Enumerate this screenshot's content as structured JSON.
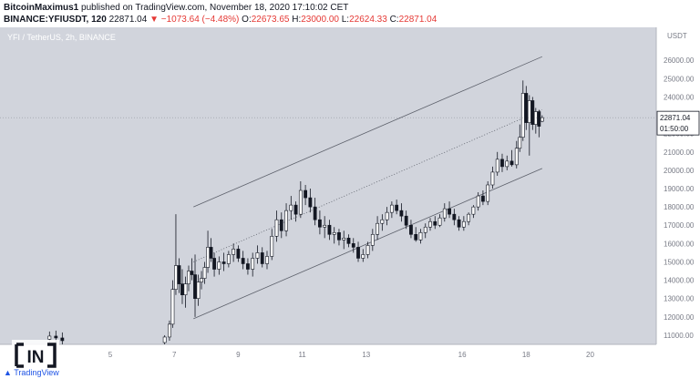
{
  "header": {
    "line1_author": "BitcoinMaximus1",
    "line1_rest": " published on TradingView.com, November 18, 2020 17:10:02 CET",
    "line2_symbol": "BINANCE:YFIUSDT, 120",
    "line2_price": "22871.04",
    "line2_change": "▼ −1073.64 (−4.48%)",
    "line2_o_label": "O:",
    "line2_o": "22673.65",
    "line2_h_label": "H:",
    "line2_h": "23000.00",
    "line2_l_label": "L:",
    "line2_l": "22624.33",
    "line2_c_label": "C:",
    "line2_c": "22871.04"
  },
  "chart_title": "YFI / TetherUS, 2h, BINANCE",
  "currency": "USDT",
  "last_price_label": "22871.04",
  "countdown_label": "01:50:00",
  "branding": {
    "logo_text": "IN",
    "tv_text": "TradingView"
  },
  "colors": {
    "background": "#d1d4dc",
    "candle_up": "#ffffff",
    "candle_down": "#131722",
    "wick": "#131722",
    "channel": "#363a45",
    "price_tag": "#131722",
    "change": "#e53935"
  },
  "chart_data": {
    "type": "candlestick",
    "title": "YFI / TetherUS, 2h, BINANCE",
    "ylabel": "USDT",
    "ylim": [
      10500,
      27800
    ],
    "x_ticks": [
      "5",
      "7",
      "9",
      "11",
      "13",
      "16",
      "18",
      "20"
    ],
    "y_ticks": [
      11000,
      12000,
      13000,
      14000,
      15000,
      16000,
      17000,
      18000,
      19000,
      20000,
      21000,
      22000,
      23000,
      24000,
      25000,
      26000
    ],
    "current_price": 22871.04,
    "ascending_channel": {
      "upper": [
        [
          7.6,
          18000
        ],
        [
          18.5,
          26200
        ]
      ],
      "middle": [
        [
          7.6,
          15000
        ],
        [
          18.5,
          23300
        ]
      ],
      "lower": [
        [
          7.6,
          11900
        ],
        [
          18.5,
          20100
        ]
      ]
    },
    "candles": [
      {
        "d": 3.1,
        "o": 10780,
        "h": 11200,
        "l": 10500,
        "c": 10950
      },
      {
        "d": 3.3,
        "o": 10950,
        "h": 11250,
        "l": 10600,
        "c": 10850
      },
      {
        "d": 3.5,
        "o": 10850,
        "h": 11150,
        "l": 10500,
        "c": 10700
      },
      {
        "d": 6.7,
        "o": 10600,
        "h": 11000,
        "l": 10500,
        "c": 10900
      },
      {
        "d": 6.85,
        "o": 10900,
        "h": 11800,
        "l": 10700,
        "c": 11600
      },
      {
        "d": 6.95,
        "o": 11600,
        "h": 14000,
        "l": 11400,
        "c": 13500
      },
      {
        "d": 7.05,
        "o": 13500,
        "h": 17600,
        "l": 13200,
        "c": 14800
      },
      {
        "d": 7.15,
        "o": 14800,
        "h": 15200,
        "l": 13300,
        "c": 13800
      },
      {
        "d": 7.25,
        "o": 13800,
        "h": 14600,
        "l": 12700,
        "c": 13200
      },
      {
        "d": 7.35,
        "o": 13200,
        "h": 14200,
        "l": 12500,
        "c": 13800
      },
      {
        "d": 7.45,
        "o": 13800,
        "h": 14800,
        "l": 13400,
        "c": 14500
      },
      {
        "d": 7.55,
        "o": 14500,
        "h": 15200,
        "l": 14000,
        "c": 14300
      },
      {
        "d": 7.65,
        "o": 14300,
        "h": 15400,
        "l": 12000,
        "c": 13000
      },
      {
        "d": 7.75,
        "o": 13000,
        "h": 14300,
        "l": 12600,
        "c": 13900
      },
      {
        "d": 7.85,
        "o": 13900,
        "h": 14500,
        "l": 13500,
        "c": 14100
      },
      {
        "d": 7.95,
        "o": 14100,
        "h": 15000,
        "l": 13800,
        "c": 14700
      },
      {
        "d": 8.05,
        "o": 14700,
        "h": 16700,
        "l": 14400,
        "c": 15800
      },
      {
        "d": 8.15,
        "o": 15800,
        "h": 16300,
        "l": 15000,
        "c": 15200
      },
      {
        "d": 8.25,
        "o": 15200,
        "h": 15500,
        "l": 14200,
        "c": 14600
      },
      {
        "d": 8.4,
        "o": 14600,
        "h": 15300,
        "l": 14300,
        "c": 15000
      },
      {
        "d": 8.55,
        "o": 15000,
        "h": 15500,
        "l": 14500,
        "c": 14900
      },
      {
        "d": 8.7,
        "o": 14900,
        "h": 15600,
        "l": 14700,
        "c": 15400
      },
      {
        "d": 8.85,
        "o": 15400,
        "h": 16000,
        "l": 15000,
        "c": 15700
      },
      {
        "d": 9.0,
        "o": 15700,
        "h": 15900,
        "l": 15000,
        "c": 15200
      },
      {
        "d": 9.15,
        "o": 15200,
        "h": 15600,
        "l": 14600,
        "c": 14900
      },
      {
        "d": 9.3,
        "o": 14900,
        "h": 15200,
        "l": 14300,
        "c": 14600
      },
      {
        "d": 9.45,
        "o": 14600,
        "h": 15500,
        "l": 14200,
        "c": 15200
      },
      {
        "d": 9.6,
        "o": 15200,
        "h": 15900,
        "l": 14900,
        "c": 15500
      },
      {
        "d": 9.75,
        "o": 15500,
        "h": 15800,
        "l": 14700,
        "c": 14900
      },
      {
        "d": 9.9,
        "o": 14900,
        "h": 15600,
        "l": 14600,
        "c": 15300
      },
      {
        "d": 10.05,
        "o": 15300,
        "h": 16800,
        "l": 15100,
        "c": 16400
      },
      {
        "d": 10.2,
        "o": 16400,
        "h": 17800,
        "l": 16100,
        "c": 17300
      },
      {
        "d": 10.35,
        "o": 17300,
        "h": 17700,
        "l": 16300,
        "c": 16700
      },
      {
        "d": 10.5,
        "o": 16700,
        "h": 18200,
        "l": 16400,
        "c": 17800
      },
      {
        "d": 10.65,
        "o": 17800,
        "h": 18600,
        "l": 17300,
        "c": 18100
      },
      {
        "d": 10.8,
        "o": 18100,
        "h": 18300,
        "l": 17200,
        "c": 17600
      },
      {
        "d": 10.95,
        "o": 17600,
        "h": 19400,
        "l": 17400,
        "c": 18900
      },
      {
        "d": 11.1,
        "o": 18900,
        "h": 19200,
        "l": 18100,
        "c": 18500
      },
      {
        "d": 11.25,
        "o": 18500,
        "h": 19000,
        "l": 17700,
        "c": 18000
      },
      {
        "d": 11.4,
        "o": 18000,
        "h": 18500,
        "l": 17000,
        "c": 17300
      },
      {
        "d": 11.55,
        "o": 17300,
        "h": 17800,
        "l": 16500,
        "c": 16900
      },
      {
        "d": 11.7,
        "o": 16900,
        "h": 17500,
        "l": 16300,
        "c": 17000
      },
      {
        "d": 11.85,
        "o": 17000,
        "h": 17300,
        "l": 16200,
        "c": 16500
      },
      {
        "d": 12.0,
        "o": 16500,
        "h": 16900,
        "l": 16000,
        "c": 16600
      },
      {
        "d": 12.15,
        "o": 16600,
        "h": 16800,
        "l": 15900,
        "c": 16200
      },
      {
        "d": 12.3,
        "o": 16200,
        "h": 16700,
        "l": 15700,
        "c": 16300
      },
      {
        "d": 12.45,
        "o": 16300,
        "h": 16500,
        "l": 15800,
        "c": 16000
      },
      {
        "d": 12.6,
        "o": 16000,
        "h": 16300,
        "l": 15500,
        "c": 15800
      },
      {
        "d": 12.75,
        "o": 15800,
        "h": 16100,
        "l": 15000,
        "c": 15200
      },
      {
        "d": 12.9,
        "o": 15200,
        "h": 15700,
        "l": 15000,
        "c": 15400
      },
      {
        "d": 13.05,
        "o": 15400,
        "h": 16100,
        "l": 15200,
        "c": 15900
      },
      {
        "d": 13.2,
        "o": 15900,
        "h": 16800,
        "l": 15600,
        "c": 16500
      },
      {
        "d": 13.35,
        "o": 16500,
        "h": 17500,
        "l": 16200,
        "c": 17100
      },
      {
        "d": 13.5,
        "o": 17100,
        "h": 17600,
        "l": 16700,
        "c": 17300
      },
      {
        "d": 13.65,
        "o": 17300,
        "h": 18000,
        "l": 17000,
        "c": 17700
      },
      {
        "d": 13.8,
        "o": 17700,
        "h": 18300,
        "l": 17400,
        "c": 18100
      },
      {
        "d": 13.95,
        "o": 18100,
        "h": 18400,
        "l": 17600,
        "c": 17800
      },
      {
        "d": 14.1,
        "o": 17800,
        "h": 18200,
        "l": 17200,
        "c": 17500
      },
      {
        "d": 14.25,
        "o": 17500,
        "h": 17800,
        "l": 16800,
        "c": 17000
      },
      {
        "d": 14.4,
        "o": 17000,
        "h": 17300,
        "l": 16300,
        "c": 16500
      },
      {
        "d": 14.55,
        "o": 16500,
        "h": 16900,
        "l": 16100,
        "c": 16200
      },
      {
        "d": 14.7,
        "o": 16200,
        "h": 16800,
        "l": 16000,
        "c": 16600
      },
      {
        "d": 14.85,
        "o": 16600,
        "h": 17100,
        "l": 16300,
        "c": 16900
      },
      {
        "d": 15.0,
        "o": 16900,
        "h": 17400,
        "l": 16700,
        "c": 17200
      },
      {
        "d": 15.15,
        "o": 17200,
        "h": 17500,
        "l": 16800,
        "c": 17000
      },
      {
        "d": 15.3,
        "o": 17000,
        "h": 17600,
        "l": 16900,
        "c": 17400
      },
      {
        "d": 15.45,
        "o": 17400,
        "h": 18200,
        "l": 17200,
        "c": 17900
      },
      {
        "d": 15.6,
        "o": 17900,
        "h": 18300,
        "l": 17400,
        "c": 17600
      },
      {
        "d": 15.75,
        "o": 17600,
        "h": 17900,
        "l": 17000,
        "c": 17300
      },
      {
        "d": 15.9,
        "o": 17300,
        "h": 17500,
        "l": 16700,
        "c": 16900
      },
      {
        "d": 16.05,
        "o": 16900,
        "h": 17500,
        "l": 16700,
        "c": 17200
      },
      {
        "d": 16.2,
        "o": 17200,
        "h": 17700,
        "l": 17000,
        "c": 17600
      },
      {
        "d": 16.35,
        "o": 17600,
        "h": 18100,
        "l": 17400,
        "c": 18000
      },
      {
        "d": 16.5,
        "o": 18000,
        "h": 18800,
        "l": 17800,
        "c": 18600
      },
      {
        "d": 16.65,
        "o": 18600,
        "h": 18900,
        "l": 18100,
        "c": 18300
      },
      {
        "d": 16.8,
        "o": 18300,
        "h": 19400,
        "l": 18100,
        "c": 19200
      },
      {
        "d": 16.95,
        "o": 19200,
        "h": 20200,
        "l": 19000,
        "c": 19900
      },
      {
        "d": 17.1,
        "o": 19900,
        "h": 21000,
        "l": 19700,
        "c": 20600
      },
      {
        "d": 17.25,
        "o": 20600,
        "h": 20900,
        "l": 19900,
        "c": 20200
      },
      {
        "d": 17.4,
        "o": 20200,
        "h": 20800,
        "l": 20000,
        "c": 20500
      },
      {
        "d": 17.55,
        "o": 20500,
        "h": 21100,
        "l": 20200,
        "c": 20300
      },
      {
        "d": 17.7,
        "o": 20300,
        "h": 21600,
        "l": 20100,
        "c": 21200
      },
      {
        "d": 17.8,
        "o": 21200,
        "h": 22500,
        "l": 21000,
        "c": 21800
      },
      {
        "d": 17.9,
        "o": 21800,
        "h": 24900,
        "l": 21600,
        "c": 24200
      },
      {
        "d": 18.0,
        "o": 24200,
        "h": 24600,
        "l": 22200,
        "c": 22600
      },
      {
        "d": 18.1,
        "o": 22600,
        "h": 24100,
        "l": 20800,
        "c": 23800
      },
      {
        "d": 18.2,
        "o": 23800,
        "h": 24000,
        "l": 22200,
        "c": 22500
      },
      {
        "d": 18.3,
        "o": 22500,
        "h": 23400,
        "l": 22000,
        "c": 23200
      },
      {
        "d": 18.4,
        "o": 23200,
        "h": 23300,
        "l": 21800,
        "c": 22400
      },
      {
        "d": 18.5,
        "o": 22673.65,
        "h": 23000,
        "l": 22624.33,
        "c": 22871.04
      }
    ]
  }
}
